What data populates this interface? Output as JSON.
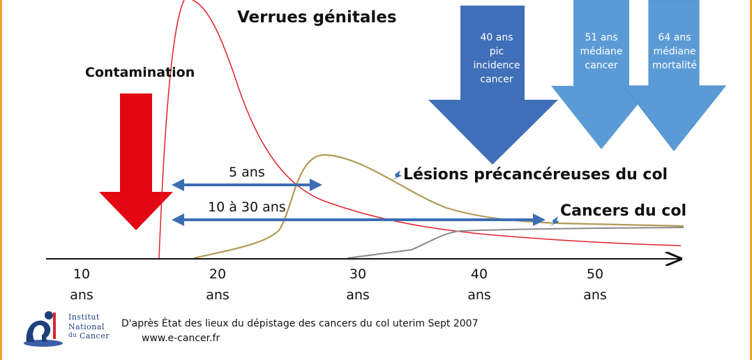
{
  "title": "Verrues génitales",
  "labels": {
    "contamination": "Contamination",
    "lesions": "Lésions précancéreuses du col",
    "cancers": "Cancers du col"
  },
  "intervals": {
    "short": "5 ans",
    "long": "10 à 30 ans"
  },
  "milestones": [
    {
      "text": "40 ans\npic\nincidence\ncancer",
      "color": "#3f6fb8"
    },
    {
      "text": "51 ans\nmédiane\ncancer",
      "color": "#5b9bd5"
    },
    {
      "text": "64 ans\nmédiane\nmortalité",
      "color": "#5b9bd5"
    }
  ],
  "axis_ticks": [
    {
      "value": "10",
      "unit": "ans"
    },
    {
      "value": "20",
      "unit": "ans"
    },
    {
      "value": "30",
      "unit": "ans"
    },
    {
      "value": "40",
      "unit": "ans"
    },
    {
      "value": "50",
      "unit": "ans"
    }
  ],
  "footer": {
    "logo_line1": "Institut",
    "logo_line2": "National",
    "logo_line3_prefix": "du",
    "logo_line3": "Cancer",
    "source": "D'après État des lieux du dépistage des cancers du col uterim Sept 2007",
    "url": "www.e-cancer.fr"
  },
  "colors": {
    "contamination_arrow": "#e30613",
    "interval_arrow": "#3d6db5",
    "verrues_curve": "#e0202a",
    "lesions_curve": "#b09a55",
    "cancers_curve": "#8a8a8a",
    "frame": "#f0a030"
  }
}
